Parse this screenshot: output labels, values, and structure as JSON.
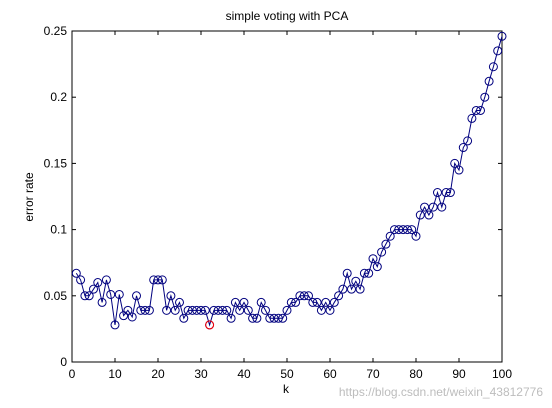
{
  "figure": {
    "watermark": "https://blog.csdn.net/weixin_43812776"
  },
  "chart_data": {
    "type": "line",
    "title": "simple voting with PCA",
    "xlabel": "k",
    "ylabel": "error rate",
    "xlim": [
      0,
      100
    ],
    "ylim": [
      0,
      0.25
    ],
    "xticks": [
      0,
      10,
      20,
      30,
      40,
      50,
      60,
      70,
      80,
      90,
      100
    ],
    "xtick_labels": [
      "0",
      "10",
      "20",
      "30",
      "40",
      "50",
      "60",
      "70",
      "80",
      "90",
      "100"
    ],
    "yticks": [
      0,
      0.05,
      0.1,
      0.15,
      0.2,
      0.25
    ],
    "ytick_labels": [
      "0",
      "0.05",
      "0.1",
      "0.15",
      "0.2",
      "0.25"
    ],
    "grid": false,
    "legend": "none",
    "line_color": "#00007f",
    "marker": "circle",
    "highlight_color": "#ff0000",
    "series": [
      {
        "x": [
          1,
          2,
          3,
          4,
          5,
          6,
          7,
          8,
          9,
          10,
          11,
          12,
          13,
          14,
          15,
          16,
          17,
          18,
          19,
          20,
          21,
          22,
          23,
          24,
          25,
          26,
          27,
          28,
          29,
          30,
          31,
          32,
          33,
          34,
          35,
          36,
          37,
          38,
          39,
          40,
          41,
          42,
          43,
          44,
          45,
          46,
          47,
          48,
          49,
          50,
          51,
          52,
          53,
          54,
          55,
          56,
          57,
          58,
          59,
          60,
          61,
          62,
          63,
          64,
          65,
          66,
          67,
          68,
          69,
          70,
          71,
          72,
          73,
          74,
          75,
          76,
          77,
          78,
          79,
          80,
          81,
          82,
          83,
          84,
          85,
          86,
          87,
          88,
          89,
          90,
          91,
          92,
          93,
          94,
          95,
          96,
          97,
          98,
          99,
          100
        ],
        "values": [
          0.067,
          0.062,
          0.05,
          0.05,
          0.055,
          0.06,
          0.045,
          0.062,
          0.051,
          0.028,
          0.051,
          0.035,
          0.039,
          0.034,
          0.05,
          0.039,
          0.039,
          0.039,
          0.062,
          0.062,
          0.062,
          0.039,
          0.05,
          0.039,
          0.045,
          0.033,
          0.039,
          0.039,
          0.039,
          0.039,
          0.039,
          0.028,
          0.039,
          0.039,
          0.039,
          0.039,
          0.033,
          0.045,
          0.039,
          0.045,
          0.039,
          0.033,
          0.033,
          0.045,
          0.039,
          0.033,
          0.033,
          0.033,
          0.033,
          0.039,
          0.045,
          0.045,
          0.05,
          0.05,
          0.05,
          0.045,
          0.045,
          0.039,
          0.045,
          0.039,
          0.045,
          0.05,
          0.055,
          0.067,
          0.055,
          0.061,
          0.055,
          0.067,
          0.067,
          0.078,
          0.072,
          0.083,
          0.089,
          0.095,
          0.1,
          0.1,
          0.1,
          0.1,
          0.1,
          0.095,
          0.111,
          0.117,
          0.111,
          0.117,
          0.128,
          0.117,
          0.128,
          0.128,
          0.15,
          0.145,
          0.162,
          0.167,
          0.184,
          0.19,
          0.19,
          0.2,
          0.212,
          0.223,
          0.235,
          0.246
        ]
      }
    ],
    "highlight_point": {
      "x": 32,
      "y": 0.028
    }
  }
}
